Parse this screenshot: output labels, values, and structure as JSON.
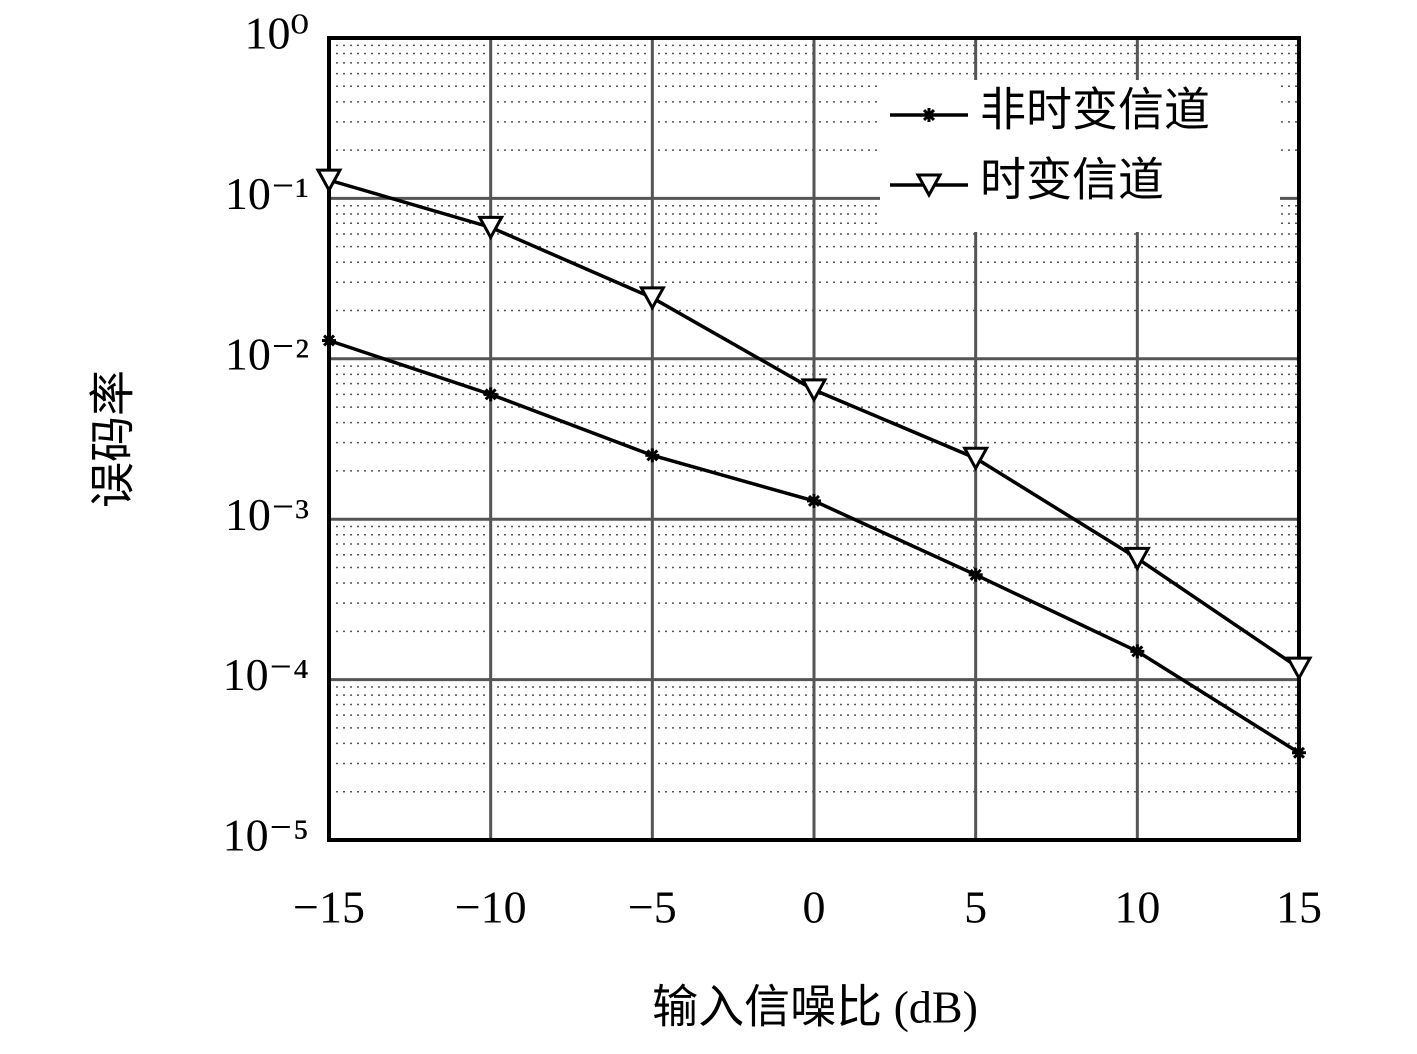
{
  "chart_data": {
    "type": "line",
    "xlabel": "输入信噪比 (dB)",
    "ylabel": "误码率",
    "x": [
      -15,
      -10,
      -5,
      0,
      5,
      10,
      15
    ],
    "series": [
      {
        "name": "非时变信道",
        "color": "#000000",
        "marker": "asterisk",
        "values": [
          0.013,
          0.006,
          0.0025,
          0.0013,
          0.00045,
          0.00015,
          3.5e-05
        ]
      },
      {
        "name": "时变信道",
        "color": "#000000",
        "marker": "triangle-down",
        "values": [
          0.13,
          0.066,
          0.024,
          0.0064,
          0.0024,
          0.00057,
          0.000118
        ]
      }
    ],
    "xlim": [
      -15,
      15
    ],
    "xticks": [
      {
        "value": -15,
        "label": "−15"
      },
      {
        "value": -10,
        "label": "−10"
      },
      {
        "value": -5,
        "label": "−5"
      },
      0,
      5,
      10,
      15
    ],
    "ylim": [
      1e-05,
      1
    ],
    "yticks": [
      {
        "value": 1,
        "label": "10⁰"
      },
      {
        "value": 0.1,
        "label": "10⁻¹"
      },
      {
        "value": 0.01,
        "label": "10⁻²"
      },
      {
        "value": 0.001,
        "label": "10⁻³"
      },
      {
        "value": 0.0001,
        "label": "10⁻⁴"
      },
      {
        "value": 1e-05,
        "label": "10⁻⁵"
      }
    ],
    "yscale": "log",
    "grid": true,
    "legend": "upper right"
  }
}
